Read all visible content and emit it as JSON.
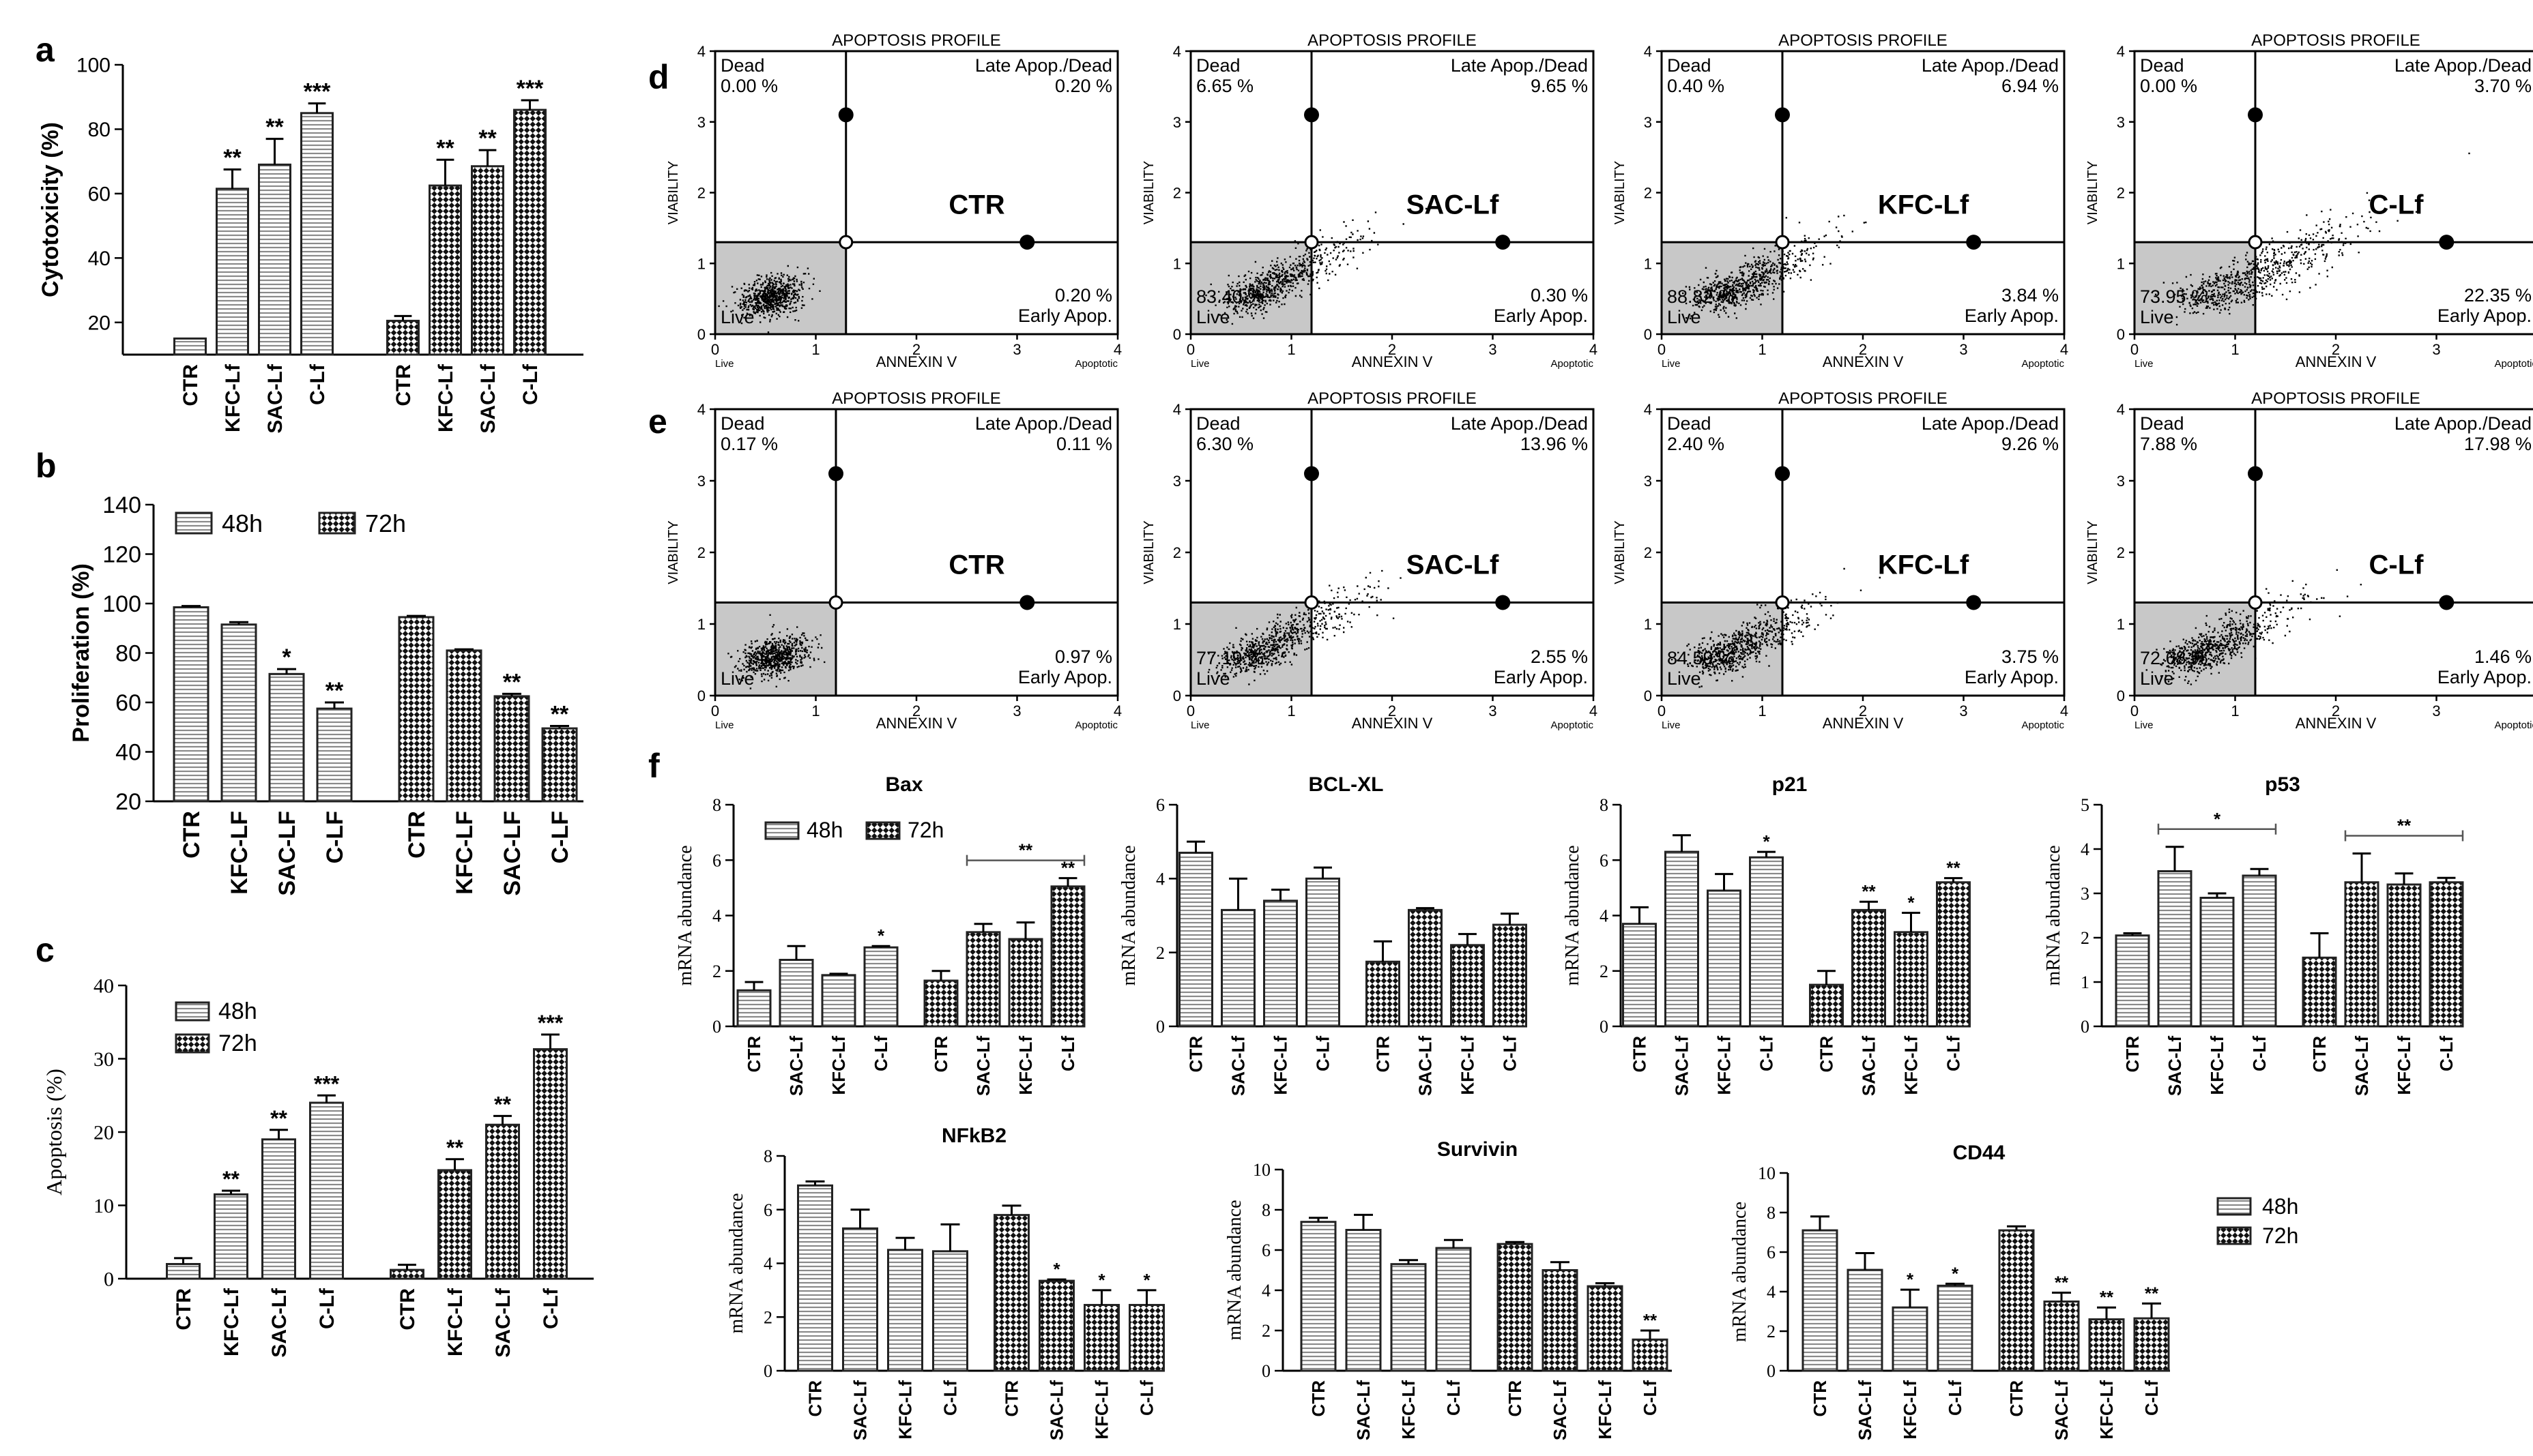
{
  "colors": {
    "bar_edge": "#222222",
    "hatch": "#8a8a8a",
    "check_dark": "#111111",
    "live_gate": "#c8c8c8",
    "dots": "#000000"
  },
  "legend_48": "48h",
  "legend_72": "72h",
  "panel_letters": {
    "a": "a",
    "b": "b",
    "c": "c",
    "d": "d",
    "e": "e",
    "f": "f"
  },
  "chart_data": [
    {
      "id": "a",
      "type": "bar",
      "title": "",
      "ylabel": "Cytotoxicity (%)",
      "ylim": [
        10,
        100
      ],
      "yticks": [
        20,
        40,
        60,
        80,
        100
      ],
      "categories": [
        "CTR",
        "KFC-Lf",
        "SAC-Lf",
        "C-Lf"
      ],
      "series": [
        {
          "name": "48h",
          "values": [
            15,
            61.5,
            69,
            85
          ],
          "errors": [
            0,
            6,
            8,
            3
          ],
          "sig": [
            "",
            "**",
            "**",
            "***"
          ]
        },
        {
          "name": "72h",
          "values": [
            20.5,
            62.5,
            68.5,
            86
          ],
          "errors": [
            1.5,
            8,
            5,
            3
          ],
          "sig": [
            "",
            "**",
            "**",
            "***"
          ]
        }
      ]
    },
    {
      "id": "b",
      "type": "bar",
      "title": "",
      "ylabel": "Proliferation (%)",
      "ylim": [
        20,
        140
      ],
      "yticks": [
        20,
        40,
        60,
        80,
        100,
        120,
        140
      ],
      "categories": [
        "CTR",
        "KFC-LF",
        "SAC-LF",
        "C-LF"
      ],
      "series": [
        {
          "name": "48h",
          "values": [
            98.5,
            91.5,
            71.5,
            57.5
          ],
          "errors": [
            0.5,
            1,
            2,
            2.5
          ],
          "sig": [
            "",
            "",
            "*",
            "**"
          ]
        },
        {
          "name": "72h",
          "values": [
            94.5,
            81,
            62.5,
            49.5
          ],
          "errors": [
            0.5,
            0.5,
            1,
            1
          ],
          "sig": [
            "",
            "",
            "**",
            "**"
          ]
        }
      ]
    },
    {
      "id": "c",
      "type": "bar",
      "title": "",
      "ylabel": "Apoptosis (%)",
      "ylim": [
        0,
        40
      ],
      "yticks": [
        0,
        10,
        20,
        30,
        40
      ],
      "categories": [
        "CTR",
        "KFC-Lf",
        "SAC-Lf",
        "C-Lf"
      ],
      "series": [
        {
          "name": "48h",
          "values": [
            2,
            11.5,
            19,
            24
          ],
          "errors": [
            0.8,
            0.5,
            1.3,
            1
          ],
          "sig": [
            "",
            "**",
            "**",
            "***"
          ]
        },
        {
          "name": "72h",
          "values": [
            1.2,
            14.8,
            21,
            31.3
          ],
          "errors": [
            0.7,
            1.5,
            1.2,
            2
          ],
          "sig": [
            "",
            "**",
            "**",
            "***"
          ]
        }
      ]
    },
    {
      "id": "bax",
      "type": "bar",
      "title": "Bax",
      "ylabel": "mRNA abundance",
      "ylim": [
        0,
        8
      ],
      "yticks": [
        0,
        2,
        4,
        6,
        8
      ],
      "categories": [
        "CTR",
        "SAC-Lf",
        "KFC-Lf",
        "C-Lf"
      ],
      "bracket": {
        "series": 1,
        "from": 1,
        "to": 3,
        "label": "**"
      },
      "series": [
        {
          "name": "48h",
          "values": [
            1.3,
            2.4,
            1.85,
            2.85
          ],
          "errors": [
            0.3,
            0.5,
            0.05,
            0.05
          ],
          "sig": [
            "",
            "",
            "",
            "*"
          ]
        },
        {
          "name": "72h",
          "values": [
            1.65,
            3.4,
            3.15,
            5.05
          ],
          "errors": [
            0.35,
            0.3,
            0.6,
            0.3
          ],
          "sig": [
            "",
            "",
            "",
            "**"
          ]
        }
      ]
    },
    {
      "id": "bclxl",
      "type": "bar",
      "title": "BCL-XL",
      "ylabel": "mRNA abundance",
      "ylim": [
        0,
        6
      ],
      "yticks": [
        0,
        2,
        4,
        6
      ],
      "categories": [
        "CTR",
        "SAC-Lf",
        "KFC-Lf",
        "C-Lf"
      ],
      "series": [
        {
          "name": "48h",
          "values": [
            4.7,
            3.15,
            3.4,
            4
          ],
          "errors": [
            0.3,
            0.85,
            0.3,
            0.3
          ],
          "sig": [
            "",
            "",
            "",
            ""
          ]
        },
        {
          "name": "72h",
          "values": [
            1.75,
            3.15,
            2.2,
            2.75
          ],
          "errors": [
            0.55,
            0.05,
            0.3,
            0.3
          ],
          "sig": [
            "",
            "",
            "",
            ""
          ]
        }
      ]
    },
    {
      "id": "p21",
      "type": "bar",
      "title": "p21",
      "ylabel": "mRNA abundance",
      "ylim": [
        0,
        8
      ],
      "yticks": [
        0,
        2,
        4,
        6,
        8
      ],
      "categories": [
        "CTR",
        "SAC-Lf",
        "KFC-Lf",
        "C-Lf"
      ],
      "series": [
        {
          "name": "48h",
          "values": [
            3.7,
            6.3,
            4.9,
            6.1
          ],
          "errors": [
            0.6,
            0.6,
            0.6,
            0.2
          ],
          "sig": [
            "",
            "",
            "",
            "*"
          ]
        },
        {
          "name": "72h",
          "values": [
            1.5,
            4.2,
            3.4,
            5.2
          ],
          "errors": [
            0.5,
            0.3,
            0.7,
            0.15
          ],
          "sig": [
            "",
            "**",
            "*",
            "**"
          ]
        }
      ]
    },
    {
      "id": "p53",
      "type": "bar",
      "title": "p53",
      "ylabel": "mRNA abundance",
      "ylim": [
        0,
        5
      ],
      "yticks": [
        0,
        1,
        2,
        3,
        4,
        5
      ],
      "categories": [
        "CTR",
        "SAC-Lf",
        "KFC-Lf",
        "C-Lf"
      ],
      "bracket": [
        {
          "series": 0,
          "from": 1,
          "to": 3,
          "label": "*"
        },
        {
          "series": 1,
          "from": 1,
          "to": 3,
          "label": "**"
        }
      ],
      "series": [
        {
          "name": "48h",
          "values": [
            2.05,
            3.5,
            2.9,
            3.4
          ],
          "errors": [
            0.05,
            0.55,
            0.1,
            0.15
          ],
          "sig": [
            "",
            "",
            "",
            ""
          ]
        },
        {
          "name": "72h",
          "values": [
            1.55,
            3.25,
            3.2,
            3.25
          ],
          "errors": [
            0.55,
            0.65,
            0.25,
            0.1
          ],
          "sig": [
            "",
            "",
            "",
            ""
          ]
        }
      ]
    },
    {
      "id": "nfkb2",
      "type": "bar",
      "title": "NFkB2",
      "ylabel": "mRNA abundance",
      "ylim": [
        0,
        8
      ],
      "yticks": [
        0,
        2,
        4,
        6,
        8
      ],
      "categories": [
        "CTR",
        "SAC-Lf",
        "KFC-Lf",
        "C-Lf"
      ],
      "series": [
        {
          "name": "48h",
          "values": [
            6.9,
            5.3,
            4.5,
            4.45
          ],
          "errors": [
            0.15,
            0.7,
            0.45,
            1
          ],
          "sig": [
            "",
            "",
            "",
            ""
          ]
        },
        {
          "name": "72h",
          "values": [
            5.8,
            3.35,
            2.45,
            2.45
          ],
          "errors": [
            0.35,
            0.05,
            0.55,
            0.55
          ],
          "sig": [
            "",
            "*",
            "*",
            "*"
          ]
        }
      ]
    },
    {
      "id": "survivin",
      "type": "bar",
      "title": "Survivin",
      "ylabel": "mRNA abundance",
      "ylim": [
        0,
        10
      ],
      "yticks": [
        0,
        2,
        4,
        6,
        8,
        10
      ],
      "categories": [
        "CTR",
        "SAC-Lf",
        "KFC-Lf",
        "C-Lf"
      ],
      "series": [
        {
          "name": "48h",
          "values": [
            7.4,
            7,
            5.3,
            6.1
          ],
          "errors": [
            0.2,
            0.75,
            0.2,
            0.4
          ],
          "sig": [
            "",
            "",
            "",
            ""
          ]
        },
        {
          "name": "72h",
          "values": [
            6.3,
            5,
            4.2,
            1.55
          ],
          "errors": [
            0.1,
            0.4,
            0.15,
            0.45
          ],
          "sig": [
            "",
            "",
            "",
            "**"
          ]
        }
      ]
    },
    {
      "id": "cd44",
      "type": "bar",
      "title": "CD44",
      "ylabel": "mRNA abundance",
      "ylim": [
        0,
        10
      ],
      "yticks": [
        0,
        2,
        4,
        6,
        8,
        10
      ],
      "categories": [
        "CTR",
        "SAC-Lf",
        "KFC-Lf",
        "C-Lf"
      ],
      "series": [
        {
          "name": "48h",
          "values": [
            7.1,
            5.1,
            3.2,
            4.3
          ],
          "errors": [
            0.7,
            0.85,
            0.9,
            0.1
          ],
          "sig": [
            "",
            "",
            "*",
            "*"
          ]
        },
        {
          "name": "72h",
          "values": [
            7.1,
            3.5,
            2.6,
            2.65
          ],
          "errors": [
            0.2,
            0.45,
            0.6,
            0.75
          ],
          "sig": [
            "",
            "**",
            "**",
            "**"
          ]
        }
      ]
    },
    {
      "id": "flow",
      "type": "scatter",
      "title": "APOPTOSIS PROFILE",
      "xlabel": "ANNEXIN V",
      "ylabel": "VIABILITY",
      "xlim": [
        0,
        4
      ],
      "ylim": [
        0,
        4
      ],
      "xticks": [
        0,
        1,
        2,
        3,
        4
      ],
      "yticks": [
        0,
        1,
        2,
        3,
        4
      ],
      "x_live": "Live",
      "x_apoptotic": "Apoptotic",
      "q_dead": "Dead",
      "q_late": "Late Apop./Dead",
      "q_early": "Early Apop.",
      "q_live": "Live",
      "plots": [
        {
          "row": "d",
          "label": "CTR",
          "gate": [
            1.3,
            1.3
          ],
          "dead": "0.00 %",
          "late": "0.20 %",
          "early": "0.20 %",
          "live": "",
          "spread": 0.25
        },
        {
          "row": "d",
          "label": "SAC-Lf",
          "gate": [
            1.2,
            1.3
          ],
          "dead": "6.65 %",
          "late": "9.65 %",
          "early": "0.30 %",
          "live": "83.40 %",
          "spread": 0.9
        },
        {
          "row": "d",
          "label": "KFC-Lf",
          "gate": [
            1.2,
            1.3
          ],
          "dead": "0.40 %",
          "late": "6.94 %",
          "early": "3.84 %",
          "live": "88.82 %",
          "spread": 0.9
        },
        {
          "row": "d",
          "label": "C-Lf",
          "gate": [
            1.2,
            1.3
          ],
          "dead": "0.00 %",
          "late": "3.70 %",
          "early": "22.35 %",
          "live": "73.95 %",
          "spread": 1.2
        },
        {
          "row": "e",
          "label": "CTR",
          "gate": [
            1.2,
            1.3
          ],
          "dead": "0.17 %",
          "late": "0.11 %",
          "early": "0.97 %",
          "live": "",
          "spread": 0.3
        },
        {
          "row": "e",
          "label": "SAC-Lf",
          "gate": [
            1.2,
            1.3
          ],
          "dead": "6.30 %",
          "late": "13.96 %",
          "early": "2.55 %",
          "live": "77.19 %",
          "spread": 0.95
        },
        {
          "row": "e",
          "label": "KFC-Lf",
          "gate": [
            1.2,
            1.3
          ],
          "dead": "2.40 %",
          "late": "9.26 %",
          "early": "3.75 %",
          "live": "84.59 %",
          "spread": 0.85
        },
        {
          "row": "e",
          "label": "C-Lf",
          "gate": [
            1.2,
            1.3
          ],
          "dead": "7.88 %",
          "late": "17.98 %",
          "early": "1.46 %",
          "live": "72.68 %",
          "spread": 0.9
        }
      ]
    }
  ]
}
